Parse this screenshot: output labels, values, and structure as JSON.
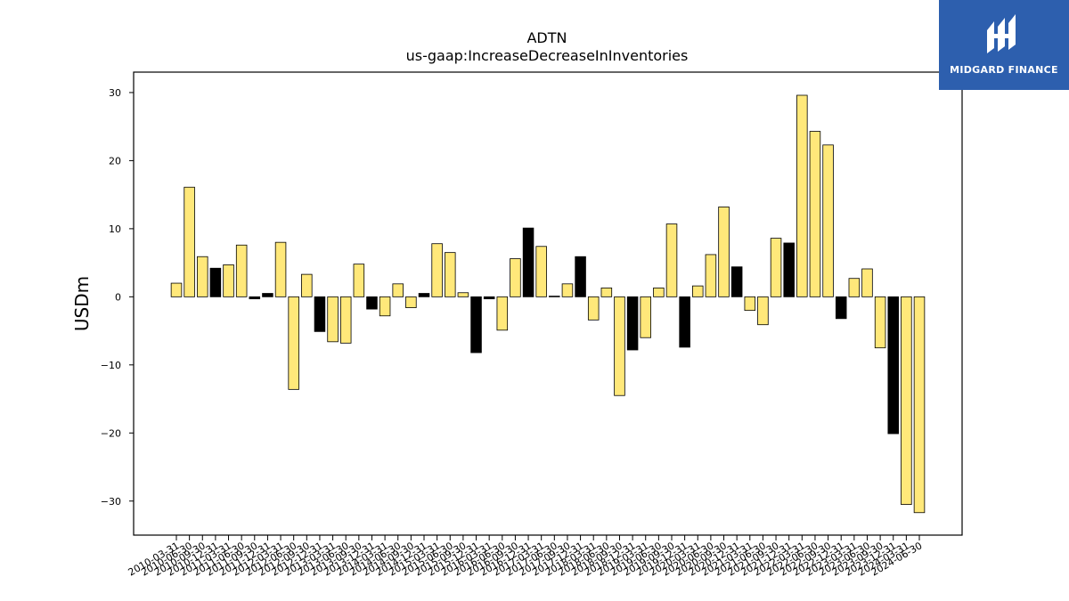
{
  "chart_data": {
    "type": "bar",
    "title": "ADTN",
    "subtitle": "us-gaap:IncreaseDecreaseInInventories",
    "xlabel": "",
    "ylabel": "USDm",
    "ylim": [
      -35,
      33
    ],
    "yticks": [
      -30,
      -20,
      -10,
      0,
      10,
      20,
      30
    ],
    "grid": false,
    "colors": {
      "default": "#ffe87a",
      "highlight": "#000000",
      "edge": "#000000"
    },
    "categories": [
      "2010-03-31",
      "2010-06-30",
      "2010-09-30",
      "2010-12-31",
      "2011-03-31",
      "2011-06-30",
      "2011-09-30",
      "2011-12-31",
      "2012-03-31",
      "2012-06-30",
      "2012-09-30",
      "2012-12-31",
      "2013-03-31",
      "2013-06-30",
      "2013-09-30",
      "2013-12-31",
      "2014-03-31",
      "2014-06-30",
      "2014-09-30",
      "2014-12-31",
      "2015-03-31",
      "2015-06-30",
      "2015-09-30",
      "2015-12-31",
      "2016-03-31",
      "2016-06-30",
      "2016-09-30",
      "2016-12-31",
      "2017-03-31",
      "2017-06-30",
      "2017-09-30",
      "2017-12-31",
      "2018-03-31",
      "2018-06-30",
      "2018-09-30",
      "2018-12-31",
      "2019-03-31",
      "2019-06-30",
      "2019-09-30",
      "2019-12-31",
      "2020-03-31",
      "2020-06-30",
      "2020-09-30",
      "2020-12-31",
      "2021-03-31",
      "2021-06-30",
      "2021-09-30",
      "2021-12-31",
      "2022-03-31",
      "2022-06-30",
      "2022-09-30",
      "2022-12-31",
      "2023-03-31",
      "2023-06-30",
      "2023-09-30",
      "2023-12-31",
      "2024-03-31",
      "2024-06-30"
    ],
    "values": [
      2.0,
      16.1,
      5.9,
      4.2,
      4.7,
      7.6,
      -0.3,
      0.5,
      8.0,
      -13.6,
      3.3,
      -5.1,
      -6.6,
      -6.8,
      4.8,
      -1.8,
      -2.8,
      1.9,
      -1.6,
      0.5,
      7.8,
      6.5,
      0.6,
      -8.2,
      -0.3,
      -4.9,
      5.6,
      10.1,
      7.4,
      0.1,
      1.9,
      5.9,
      -3.4,
      1.3,
      -14.5,
      -7.8,
      -6.0,
      1.3,
      10.7,
      -7.4,
      1.6,
      6.2,
      13.2,
      4.4,
      -2.0,
      -4.1,
      8.6,
      7.9,
      29.6,
      24.3,
      22.3,
      -3.2,
      2.7,
      4.1,
      -7.5,
      -20.1,
      -30.5,
      -31.7
    ],
    "highlighted": [
      false,
      false,
      false,
      true,
      false,
      false,
      true,
      true,
      false,
      false,
      false,
      true,
      false,
      false,
      false,
      true,
      false,
      false,
      false,
      true,
      false,
      false,
      false,
      true,
      true,
      false,
      false,
      true,
      false,
      true,
      false,
      true,
      false,
      false,
      false,
      true,
      false,
      false,
      false,
      true,
      false,
      false,
      false,
      true,
      false,
      false,
      false,
      true,
      false,
      false,
      false,
      true,
      false,
      false,
      false,
      true,
      false,
      false
    ]
  },
  "logo": {
    "text": "MIDGARD FINANCE",
    "icon": "midgard-logo-icon"
  }
}
